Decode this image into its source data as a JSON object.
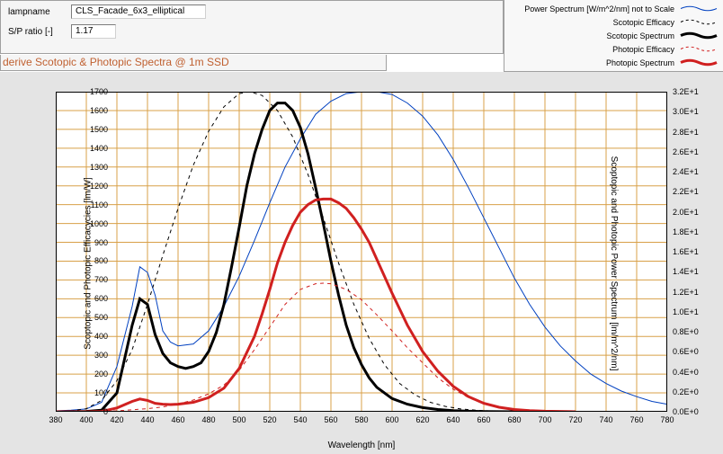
{
  "header": {
    "lampname_label": "lampname",
    "lampname_value": "CLS_Facade_6x3_elliptical",
    "sp_label": "S/P ratio [-]",
    "sp_value": "1.17"
  },
  "title": "derive Scotopic & Photopic Spectra @ 1m SSD",
  "legend": [
    {
      "text": "Power Spectrum [W/m^2/nm] not to Scale",
      "color": "#0040c0",
      "width": 1,
      "dash": "0"
    },
    {
      "text": "Scotopic Efficacy",
      "color": "#000000",
      "width": 1,
      "dash": "3,3"
    },
    {
      "text": "Scotopic Spectrum",
      "color": "#000000",
      "width": 3,
      "dash": "0"
    },
    {
      "text": "Photopic Efficacy",
      "color": "#d02020",
      "width": 1,
      "dash": "3,3"
    },
    {
      "text": "Photopic Spectrum",
      "color": "#d02020",
      "width": 3,
      "dash": "0"
    }
  ],
  "chart": {
    "background": "#e4e4e4",
    "plot_bg": "#ffffff",
    "grid_color": "#d8a048",
    "xlim": [
      380,
      780
    ],
    "xtick_step": 20,
    "xlabel": "Wavelength [nm]",
    "y_left": {
      "min": 0,
      "max": 1700,
      "step": 100,
      "label": "Scoptopic and Photopic Efficacycies [lm/W]"
    },
    "y_right": {
      "min": 0,
      "max": 3.2,
      "step": 0.2,
      "label": "Scoptopic and Photopic Power Spectrum [lm/m^2/nm]",
      "fmt": "E+1"
    },
    "spectrum_bar": [
      {
        "stop": 0.0,
        "color": "#000000"
      },
      {
        "stop": 0.02,
        "color": "#1a1a4a"
      },
      {
        "stop": 0.05,
        "color": "#2000a0"
      },
      {
        "stop": 0.12,
        "color": "#0000ff"
      },
      {
        "stop": 0.27,
        "color": "#00c0ff"
      },
      {
        "stop": 0.33,
        "color": "#00ff80"
      },
      {
        "stop": 0.42,
        "color": "#40ff00"
      },
      {
        "stop": 0.5,
        "color": "#ffff00"
      },
      {
        "stop": 0.57,
        "color": "#ffb000"
      },
      {
        "stop": 0.65,
        "color": "#ff6000"
      },
      {
        "stop": 0.72,
        "color": "#ff0000"
      },
      {
        "stop": 0.82,
        "color": "#c00000"
      },
      {
        "stop": 0.92,
        "color": "#600000"
      },
      {
        "stop": 1.0,
        "color": "#000000"
      }
    ],
    "series": [
      {
        "name": "power",
        "color": "#0040c0",
        "width": 1,
        "dash": "0",
        "points": [
          [
            380,
            5
          ],
          [
            390,
            8
          ],
          [
            400,
            15
          ],
          [
            410,
            50
          ],
          [
            420,
            240
          ],
          [
            430,
            560
          ],
          [
            435,
            770
          ],
          [
            440,
            740
          ],
          [
            445,
            620
          ],
          [
            450,
            430
          ],
          [
            455,
            370
          ],
          [
            460,
            350
          ],
          [
            470,
            360
          ],
          [
            480,
            430
          ],
          [
            490,
            560
          ],
          [
            500,
            720
          ],
          [
            510,
            910
          ],
          [
            520,
            1110
          ],
          [
            530,
            1300
          ],
          [
            540,
            1450
          ],
          [
            550,
            1580
          ],
          [
            560,
            1650
          ],
          [
            570,
            1690
          ],
          [
            580,
            1700
          ],
          [
            590,
            1700
          ],
          [
            600,
            1685
          ],
          [
            610,
            1640
          ],
          [
            620,
            1570
          ],
          [
            630,
            1470
          ],
          [
            640,
            1340
          ],
          [
            650,
            1190
          ],
          [
            660,
            1030
          ],
          [
            670,
            870
          ],
          [
            680,
            710
          ],
          [
            690,
            570
          ],
          [
            700,
            450
          ],
          [
            710,
            350
          ],
          [
            720,
            270
          ],
          [
            730,
            200
          ],
          [
            740,
            150
          ],
          [
            750,
            110
          ],
          [
            760,
            80
          ],
          [
            770,
            55
          ],
          [
            780,
            40
          ]
        ]
      },
      {
        "name": "scotopic_eff",
        "color": "#000000",
        "width": 1,
        "dash": "4,4",
        "points": [
          [
            380,
            1
          ],
          [
            390,
            4
          ],
          [
            400,
            16
          ],
          [
            410,
            60
          ],
          [
            420,
            165
          ],
          [
            430,
            330
          ],
          [
            440,
            570
          ],
          [
            450,
            830
          ],
          [
            460,
            1080
          ],
          [
            470,
            1310
          ],
          [
            480,
            1490
          ],
          [
            490,
            1620
          ],
          [
            500,
            1690
          ],
          [
            507,
            1700
          ],
          [
            515,
            1680
          ],
          [
            525,
            1600
          ],
          [
            535,
            1460
          ],
          [
            545,
            1260
          ],
          [
            555,
            1030
          ],
          [
            565,
            790
          ],
          [
            575,
            570
          ],
          [
            585,
            390
          ],
          [
            595,
            250
          ],
          [
            605,
            150
          ],
          [
            615,
            90
          ],
          [
            625,
            50
          ],
          [
            635,
            28
          ],
          [
            645,
            15
          ],
          [
            655,
            8
          ],
          [
            665,
            4
          ],
          [
            680,
            1
          ],
          [
            700,
            0
          ]
        ]
      },
      {
        "name": "scotopic_spec",
        "color": "#000000",
        "width": 3,
        "dash": "0",
        "points": [
          [
            380,
            0
          ],
          [
            390,
            1
          ],
          [
            400,
            2
          ],
          [
            410,
            8
          ],
          [
            420,
            100
          ],
          [
            430,
            460
          ],
          [
            435,
            600
          ],
          [
            440,
            570
          ],
          [
            445,
            410
          ],
          [
            450,
            310
          ],
          [
            455,
            260
          ],
          [
            460,
            240
          ],
          [
            465,
            230
          ],
          [
            470,
            240
          ],
          [
            475,
            260
          ],
          [
            480,
            320
          ],
          [
            485,
            420
          ],
          [
            490,
            570
          ],
          [
            495,
            770
          ],
          [
            500,
            980
          ],
          [
            505,
            1200
          ],
          [
            510,
            1370
          ],
          [
            515,
            1500
          ],
          [
            520,
            1600
          ],
          [
            525,
            1640
          ],
          [
            530,
            1640
          ],
          [
            535,
            1600
          ],
          [
            540,
            1510
          ],
          [
            545,
            1370
          ],
          [
            550,
            1190
          ],
          [
            555,
            1000
          ],
          [
            560,
            800
          ],
          [
            565,
            620
          ],
          [
            570,
            460
          ],
          [
            575,
            340
          ],
          [
            580,
            250
          ],
          [
            585,
            180
          ],
          [
            590,
            130
          ],
          [
            600,
            70
          ],
          [
            610,
            40
          ],
          [
            620,
            22
          ],
          [
            630,
            12
          ],
          [
            640,
            6
          ],
          [
            650,
            3
          ],
          [
            660,
            1
          ],
          [
            680,
            0
          ]
        ]
      },
      {
        "name": "photopic_eff",
        "color": "#d02020",
        "width": 1,
        "dash": "4,4",
        "points": [
          [
            380,
            0
          ],
          [
            400,
            1
          ],
          [
            420,
            5
          ],
          [
            440,
            16
          ],
          [
            450,
            26
          ],
          [
            460,
            41
          ],
          [
            470,
            62
          ],
          [
            480,
            95
          ],
          [
            490,
            142
          ],
          [
            500,
            220
          ],
          [
            510,
            330
          ],
          [
            520,
            450
          ],
          [
            530,
            570
          ],
          [
            540,
            650
          ],
          [
            550,
            680
          ],
          [
            555,
            683
          ],
          [
            560,
            680
          ],
          [
            570,
            650
          ],
          [
            580,
            595
          ],
          [
            590,
            515
          ],
          [
            600,
            430
          ],
          [
            610,
            340
          ],
          [
            620,
            260
          ],
          [
            630,
            180
          ],
          [
            640,
            120
          ],
          [
            650,
            75
          ],
          [
            660,
            42
          ],
          [
            670,
            22
          ],
          [
            680,
            12
          ],
          [
            690,
            6
          ],
          [
            700,
            3
          ],
          [
            720,
            0
          ]
        ]
      },
      {
        "name": "photopic_spec",
        "color": "#d02020",
        "width": 3,
        "dash": "0",
        "points": [
          [
            380,
            0
          ],
          [
            400,
            0
          ],
          [
            410,
            2
          ],
          [
            420,
            20
          ],
          [
            430,
            55
          ],
          [
            435,
            68
          ],
          [
            440,
            60
          ],
          [
            445,
            45
          ],
          [
            450,
            40
          ],
          [
            455,
            38
          ],
          [
            460,
            40
          ],
          [
            470,
            50
          ],
          [
            480,
            75
          ],
          [
            490,
            125
          ],
          [
            500,
            230
          ],
          [
            510,
            400
          ],
          [
            515,
            520
          ],
          [
            520,
            650
          ],
          [
            525,
            790
          ],
          [
            530,
            900
          ],
          [
            535,
            990
          ],
          [
            540,
            1060
          ],
          [
            545,
            1100
          ],
          [
            550,
            1125
          ],
          [
            555,
            1130
          ],
          [
            560,
            1130
          ],
          [
            565,
            1110
          ],
          [
            570,
            1080
          ],
          [
            575,
            1030
          ],
          [
            580,
            970
          ],
          [
            585,
            900
          ],
          [
            590,
            810
          ],
          [
            595,
            720
          ],
          [
            600,
            630
          ],
          [
            610,
            460
          ],
          [
            620,
            320
          ],
          [
            630,
            215
          ],
          [
            640,
            135
          ],
          [
            650,
            80
          ],
          [
            660,
            45
          ],
          [
            670,
            24
          ],
          [
            680,
            12
          ],
          [
            690,
            6
          ],
          [
            700,
            3
          ],
          [
            720,
            0
          ]
        ]
      }
    ]
  }
}
